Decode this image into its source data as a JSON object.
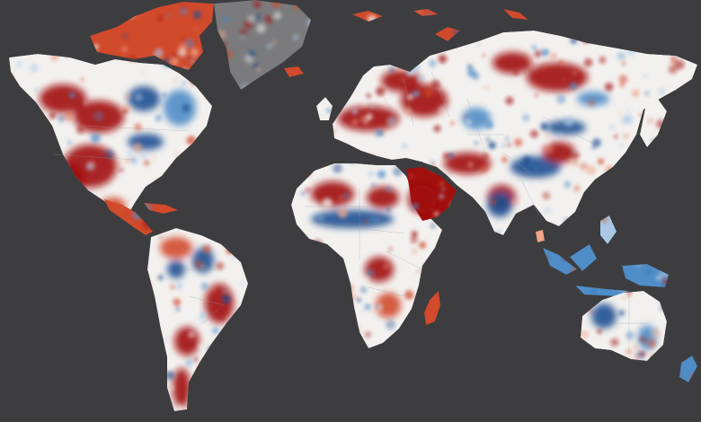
{
  "map": {
    "kind": "world choropleth",
    "projection": "equirectangular",
    "printed_text": [],
    "colors": {
      "ocean": "#3d3d40",
      "greenland": "#7b7b7d",
      "dry_strong": "#a1100d",
      "dry_medium": "#d14a2b",
      "dry_light": "#f0a58a",
      "neutral": "#f3f1ef",
      "wet_light": "#aac8e6",
      "wet_medium": "#4f8dc8",
      "wet_strong": "#1d4f92",
      "borders": "#9a9a9a"
    },
    "regions": [
      {
        "name": "north-america",
        "base": "neutral"
      },
      {
        "name": "central-america",
        "base": "dry_medium"
      },
      {
        "name": "caribbean",
        "base": "dry_medium"
      },
      {
        "name": "greenland",
        "base": "greenland"
      },
      {
        "name": "canadian-arctic-islands",
        "base": "dry_medium"
      },
      {
        "name": "south-america",
        "base": "neutral"
      },
      {
        "name": "europe",
        "base": "neutral"
      },
      {
        "name": "asia",
        "base": "neutral"
      },
      {
        "name": "africa",
        "base": "neutral"
      },
      {
        "name": "madagascar",
        "base": "dry_medium"
      },
      {
        "name": "arabia",
        "base": "dry_strong"
      },
      {
        "name": "indonesia",
        "base": "wet_medium"
      },
      {
        "name": "philippines",
        "base": "wet_light"
      },
      {
        "name": "japan",
        "base": "neutral"
      },
      {
        "name": "australia",
        "base": "neutral"
      },
      {
        "name": "new-zealand",
        "base": "wet_medium"
      },
      {
        "name": "iceland",
        "base": "dry_medium"
      },
      {
        "name": "uk",
        "base": "neutral"
      },
      {
        "name": "svalbard",
        "base": "dry_medium"
      },
      {
        "name": "sri-lanka",
        "base": "dry_light"
      }
    ],
    "hotspots": [
      {
        "name": "alaska-yukon",
        "tone": "dry_strong"
      },
      {
        "name": "western-canada",
        "tone": "dry_strong"
      },
      {
        "name": "western-us",
        "tone": "dry_strong"
      },
      {
        "name": "great-lakes",
        "tone": "wet_strong"
      },
      {
        "name": "hudson-bay",
        "tone": "wet_strong"
      },
      {
        "name": "eastern-canada",
        "tone": "wet_medium"
      },
      {
        "name": "mexico",
        "tone": "dry_medium"
      },
      {
        "name": "amazon-north",
        "tone": "dry_medium"
      },
      {
        "name": "amazon-east",
        "tone": "wet_strong"
      },
      {
        "name": "brazil-south",
        "tone": "dry_strong"
      },
      {
        "name": "andes-south",
        "tone": "dry_strong"
      },
      {
        "name": "patagonia",
        "tone": "dry_strong"
      },
      {
        "name": "eastern-europe",
        "tone": "dry_strong"
      },
      {
        "name": "western-russia",
        "tone": "dry_strong"
      },
      {
        "name": "central-siberia",
        "tone": "dry_strong"
      },
      {
        "name": "kazakhstan",
        "tone": "wet_medium"
      },
      {
        "name": "iran",
        "tone": "dry_strong"
      },
      {
        "name": "pakistan",
        "tone": "dry_strong"
      },
      {
        "name": "tibet",
        "tone": "wet_strong"
      },
      {
        "name": "northern-india",
        "tone": "wet_strong"
      },
      {
        "name": "north-china",
        "tone": "wet_strong"
      },
      {
        "name": "south-china",
        "tone": "dry_strong"
      },
      {
        "name": "sahel",
        "tone": "wet_strong"
      },
      {
        "name": "sahara-west",
        "tone": "dry_strong"
      },
      {
        "name": "east-africa",
        "tone": "dry_strong"
      },
      {
        "name": "southern-africa",
        "tone": "dry_medium"
      },
      {
        "name": "western-australia",
        "tone": "wet_strong"
      },
      {
        "name": "eastern-australia",
        "tone": "wet_medium"
      }
    ]
  }
}
